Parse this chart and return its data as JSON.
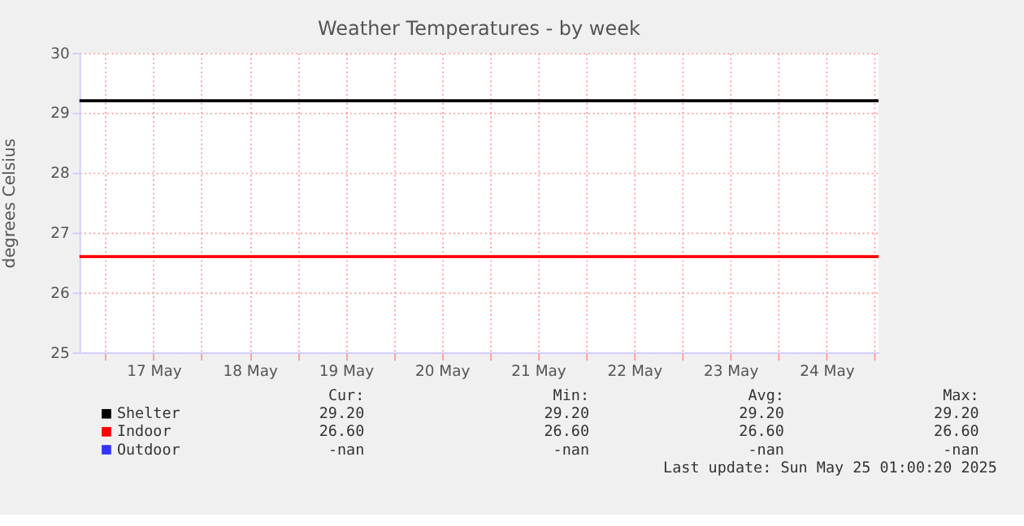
{
  "chart_data": {
    "type": "line",
    "title": "Weather Temperatures - by week",
    "ylabel": "degrees Celsius",
    "x": [
      "2025-05-16T17:30",
      "2025-05-25T01:00"
    ],
    "series": [
      {
        "name": "Shelter",
        "color": "#000000",
        "values": [
          29.2,
          29.2
        ]
      },
      {
        "name": "Indoor",
        "color": "#ff0000",
        "values": [
          26.6,
          26.6
        ]
      },
      {
        "name": "Outdoor",
        "color": "#3333ff",
        "values": [
          null,
          null
        ]
      }
    ],
    "xlim": [
      "2025-05-16T17:30",
      "2025-05-25T01:00"
    ],
    "xticks": [
      {
        "value": "2025-05-17",
        "label": null
      },
      {
        "value": "2025-05-17T12:00",
        "label": "17 May"
      },
      {
        "value": "2025-05-18",
        "label": null
      },
      {
        "value": "2025-05-18T12:00",
        "label": "18 May"
      },
      {
        "value": "2025-05-19",
        "label": null
      },
      {
        "value": "2025-05-19T12:00",
        "label": "19 May"
      },
      {
        "value": "2025-05-20",
        "label": null
      },
      {
        "value": "2025-05-20T12:00",
        "label": "20 May"
      },
      {
        "value": "2025-05-21",
        "label": null
      },
      {
        "value": "2025-05-21T12:00",
        "label": "21 May"
      },
      {
        "value": "2025-05-22",
        "label": null
      },
      {
        "value": "2025-05-22T12:00",
        "label": "22 May"
      },
      {
        "value": "2025-05-23",
        "label": null
      },
      {
        "value": "2025-05-23T12:00",
        "label": "23 May"
      },
      {
        "value": "2025-05-24",
        "label": null
      },
      {
        "value": "2025-05-24T12:00",
        "label": "24 May"
      },
      {
        "value": "2025-05-25",
        "label": null
      }
    ],
    "ylim": [
      25,
      30
    ],
    "yticks": [
      25,
      26,
      27,
      28,
      29,
      30
    ],
    "grid": true,
    "legend": "bottom",
    "annotations": [
      "Cur:",
      "Min:",
      "Avg:",
      "Max:",
      "29.20",
      "29.20",
      "29.20",
      "29.20",
      "26.60",
      "26.60",
      "26.60",
      "26.60",
      "-nan",
      "-nan",
      "-nan",
      "-nan",
      "Last update: Sun May 25 01:00:20 2025"
    ]
  }
}
